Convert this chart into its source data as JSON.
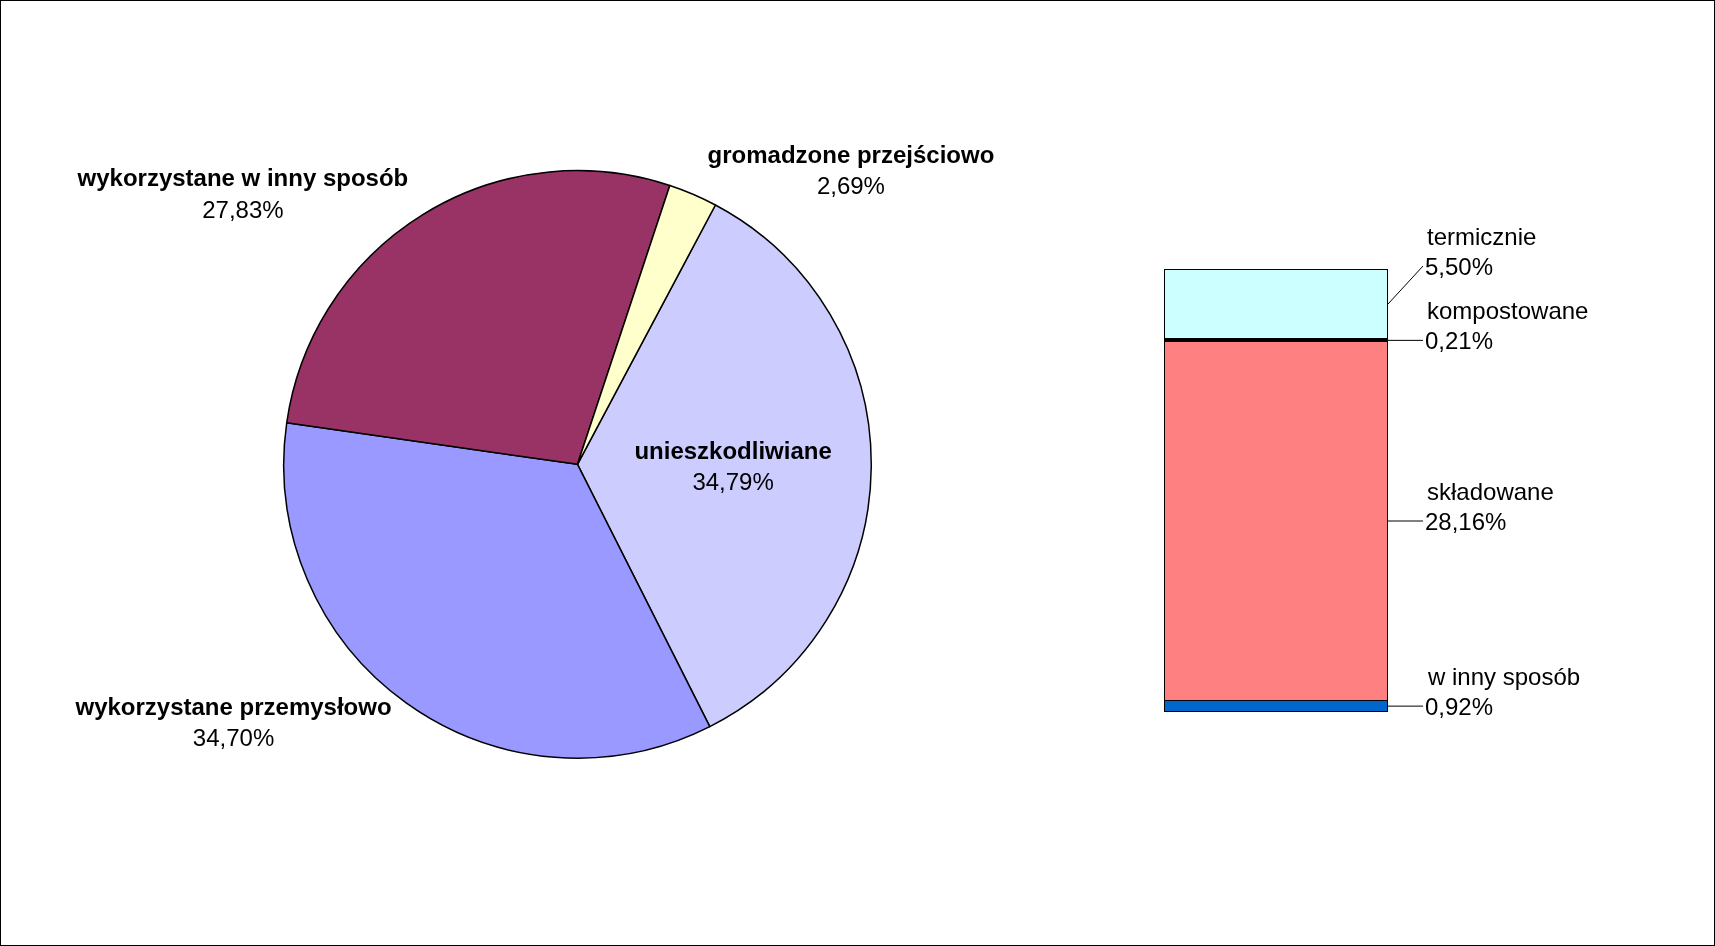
{
  "chart_data": [
    {
      "type": "pie",
      "categories": [
        "unieszkodliwiane",
        "wykorzystane przemysłowo",
        "wykorzystane w inny sposób",
        "gromadzone przejściowo"
      ],
      "values": [
        34.79,
        34.7,
        27.83,
        2.69
      ],
      "value_labels": [
        "34,79%",
        "34,70%",
        "27,83%",
        "2,69%"
      ],
      "colors": [
        "#ccccff",
        "#9999ff",
        "#993366",
        "#ffffcc"
      ],
      "legend": false
    },
    {
      "type": "bar",
      "stacked": true,
      "categories": [
        null
      ],
      "tick_labels": false,
      "legend": "right",
      "series": [
        {
          "name": "w inny sposób",
          "color": "#0066cc",
          "values": [
            0.92
          ],
          "value_labels": [
            "0,92%"
          ]
        },
        {
          "name": "składowane",
          "color": "#ff8080",
          "values": [
            28.16
          ],
          "value_labels": [
            "28,16%"
          ]
        },
        {
          "name": "kompostowane",
          "color": "#000000",
          "values": [
            0.21
          ],
          "value_labels": [
            "0,21%"
          ]
        },
        {
          "name": "termicznie",
          "color": "#ccffff",
          "values": [
            5.5
          ],
          "value_labels": [
            "5,50%"
          ]
        }
      ]
    }
  ]
}
